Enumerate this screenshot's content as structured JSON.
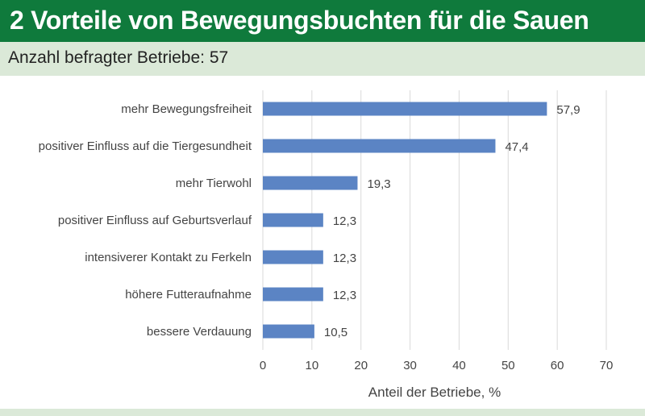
{
  "header": {
    "title": "2 Vorteile von Bewegungsbuchten für die Sauen",
    "subtitle": "Anzahl befragter Betriebe: 57"
  },
  "colors": {
    "header_bg": "#0f7a3c",
    "subheader_bg": "#dbe9d8",
    "bar": "#5b84c4",
    "grid": "#d9d9d9"
  },
  "chart_data": {
    "type": "bar",
    "orientation": "horizontal",
    "categories": [
      "mehr Bewegungsfreiheit",
      "positiver Einfluss auf die Tiergesundheit",
      "mehr Tierwohl",
      "positiver Einfluss auf Geburtsverlauf",
      "intensiverer Kontakt zu Ferkeln",
      "höhere Futteraufnahme",
      "bessere Verdauung"
    ],
    "values": [
      57.9,
      47.4,
      19.3,
      12.3,
      12.3,
      12.3,
      10.5
    ],
    "value_labels": [
      "57,9",
      "47,4",
      "19,3",
      "12,3",
      "12,3",
      "12,3",
      "10,5"
    ],
    "xlabel": "Anteil der Betriebe, %",
    "ylabel": "",
    "xlim": [
      0,
      70
    ],
    "ticks": [
      0,
      10,
      20,
      30,
      40,
      50,
      60,
      70
    ],
    "grid": true,
    "legend": "none"
  }
}
